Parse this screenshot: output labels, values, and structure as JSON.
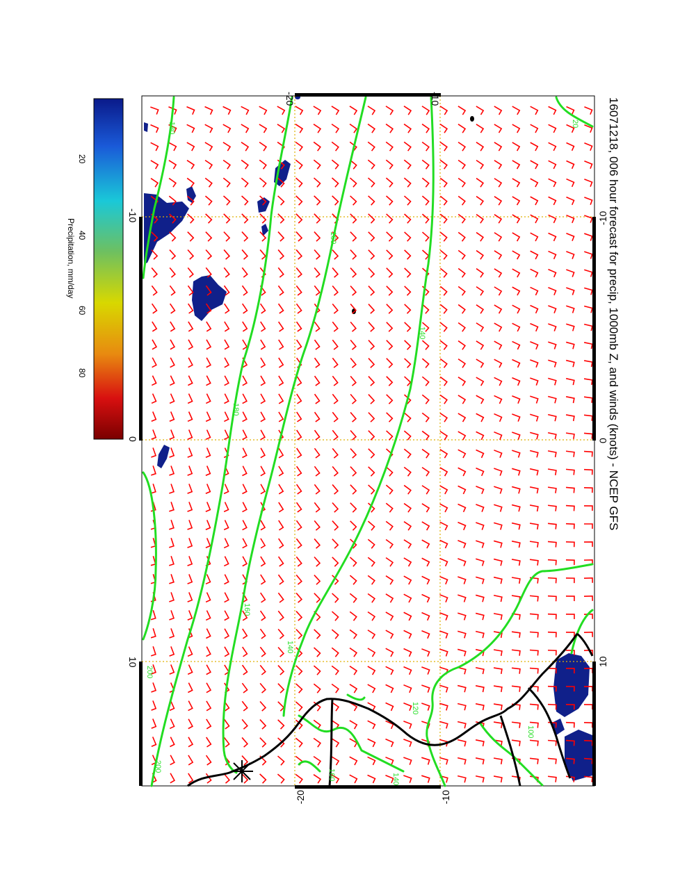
{
  "title": "1607121 8, 006 hour forecast for precip, 1000mb Z, and winds (knots) - NCEP GFS",
  "title_exact": "16071218, 006 hour forecast for precip, 1000mb Z, and winds (knots) - NCEP GFS",
  "axes": {
    "top_ticks": [
      "-20",
      "-10"
    ],
    "bottom_ticks": [
      "-20",
      "-10"
    ],
    "left_ticks": [
      "-10",
      "0",
      "10"
    ],
    "right_ticks": [
      "-10",
      "0",
      "10"
    ]
  },
  "colorbar": {
    "label": "Precipitation, mm/day",
    "ticks": [
      "20",
      "40",
      "60",
      "80"
    ],
    "colors": [
      "#0a1a8a",
      "#1a5ad8",
      "#1ac8d8",
      "#6ec060",
      "#d8d800",
      "#e88a10",
      "#d81010",
      "#7a0000"
    ]
  },
  "contour_labels": [
    "180",
    "160",
    "140",
    "180",
    "160",
    "140",
    "200",
    "120",
    "100",
    "140",
    "160",
    "20"
  ],
  "colors": {
    "contour": "#22dd22",
    "wind_barb": "#ff0000",
    "grid": "#e0b000",
    "coast": "#000000",
    "precip": "#10208a"
  }
}
